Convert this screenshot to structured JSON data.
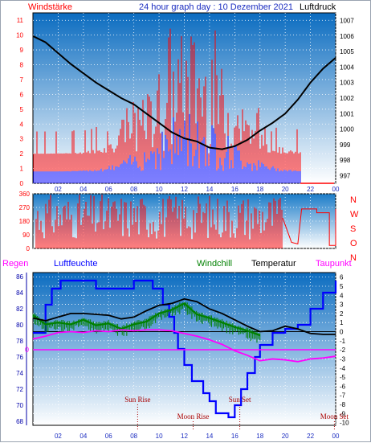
{
  "header": {
    "left_label": "Windstärke",
    "title": "24 hour graph day : 10 Dezember 2021",
    "right_label": "Luftdruck"
  },
  "colors": {
    "wind": "#ff0000",
    "gust_blue": "#0000ff",
    "pressure": "#000000",
    "humidity": "#0000ff",
    "windchill": "#008000",
    "temperature": "#000000",
    "dewpoint": "#ff00ff",
    "rain": "#ff00ff",
    "bg_top": "#0a6ec0",
    "bg_bottom": "#ffffff"
  },
  "x_ticks": [
    "02",
    "04",
    "06",
    "08",
    "10",
    "12",
    "14",
    "16",
    "18",
    "20",
    "22",
    "00"
  ],
  "panel1": {
    "y_left_ticks": [
      "0",
      "1",
      "2",
      "3",
      "4",
      "5",
      "6",
      "7",
      "8",
      "9",
      "10",
      "11"
    ],
    "y_right_ticks": [
      "997",
      "998",
      "999",
      "1000",
      "1001",
      "1002",
      "1003",
      "1004",
      "1005",
      "1006",
      "1007"
    ],
    "pressure_points": [
      [
        0,
        1006.0
      ],
      [
        1,
        1005.6
      ],
      [
        2,
        1004.9
      ],
      [
        3,
        1004.2
      ],
      [
        4,
        1003.6
      ],
      [
        5,
        1003.0
      ],
      [
        6,
        1002.5
      ],
      [
        7,
        1002.0
      ],
      [
        8,
        1001.6
      ],
      [
        9,
        1001.0
      ],
      [
        10,
        1000.4
      ],
      [
        11,
        999.8
      ],
      [
        12,
        999.4
      ],
      [
        13,
        999.2
      ],
      [
        14,
        998.8
      ],
      [
        15,
        998.7
      ],
      [
        16,
        998.9
      ],
      [
        17,
        999.3
      ],
      [
        18,
        999.9
      ],
      [
        19,
        1000.4
      ],
      [
        20,
        1001.0
      ],
      [
        21,
        1001.9
      ],
      [
        22,
        1003.0
      ],
      [
        23,
        1003.9
      ],
      [
        24,
        1004.6
      ]
    ]
  },
  "panel2": {
    "y_ticks": [
      "0",
      "90",
      "180",
      "270",
      "360"
    ],
    "compass": [
      "N",
      "W",
      "S",
      "O",
      "N"
    ]
  },
  "panel3": {
    "legend": {
      "rain": "Regen",
      "humidity": "Luftfeuchte",
      "windchill": "Windchill",
      "temperature": "Temperatur",
      "dewpoint": "Taupunkt"
    },
    "y_left_ticks": [
      "68",
      "70",
      "72",
      "74",
      "76",
      "78",
      "80",
      "82",
      "84",
      "86"
    ],
    "y_right_ticks": [
      "-10",
      "-9",
      "-8",
      "-7",
      "-6",
      "-5",
      "-4",
      "-3",
      "-2",
      "-1",
      "0",
      "1",
      "2",
      "3",
      "4",
      "5",
      "6"
    ],
    "rain_zero_label": "0",
    "humidity_points": [
      [
        0,
        79.0
      ],
      [
        1,
        82.5
      ],
      [
        1.5,
        84.5
      ],
      [
        2.2,
        85.5
      ],
      [
        4,
        85.5
      ],
      [
        5,
        84.5
      ],
      [
        6,
        84.5
      ],
      [
        8,
        85.5
      ],
      [
        9.5,
        84.5
      ],
      [
        10.3,
        82.5
      ],
      [
        10.8,
        81.0
      ],
      [
        11.2,
        79.0
      ],
      [
        11.5,
        77.0
      ],
      [
        12,
        75.0
      ],
      [
        12.6,
        73.0
      ],
      [
        13.5,
        71.5
      ],
      [
        14,
        70.5
      ],
      [
        14.5,
        69.0
      ],
      [
        15.5,
        68.5
      ],
      [
        16,
        70.0
      ],
      [
        16.5,
        72.0
      ],
      [
        17,
        74.0
      ],
      [
        17.6,
        76.0
      ],
      [
        18,
        77.5
      ],
      [
        19,
        79.0
      ],
      [
        20,
        79.5
      ],
      [
        21,
        80.0
      ],
      [
        22,
        82.0
      ],
      [
        23,
        84.0
      ],
      [
        24,
        85.5
      ]
    ],
    "temperature_points": [
      [
        0,
        1.5
      ],
      [
        1,
        1.2
      ],
      [
        2,
        1.6
      ],
      [
        3,
        2.0
      ],
      [
        4,
        2.0
      ],
      [
        5,
        1.9
      ],
      [
        6,
        1.8
      ],
      [
        7,
        1.4
      ],
      [
        8,
        1.6
      ],
      [
        9,
        2.3
      ],
      [
        10,
        2.9
      ],
      [
        11,
        3.1
      ],
      [
        12,
        3.6
      ],
      [
        13,
        3.3
      ],
      [
        14,
        2.5
      ],
      [
        15,
        2.0
      ],
      [
        16,
        1.3
      ],
      [
        17,
        0.6
      ],
      [
        18,
        0.0
      ],
      [
        19,
        0.1
      ],
      [
        20,
        0.6
      ],
      [
        21,
        0.3
      ],
      [
        22,
        -0.2
      ],
      [
        23,
        -0.3
      ],
      [
        24,
        -0.3
      ]
    ],
    "windchill_points": [
      [
        0,
        1.8
      ],
      [
        1,
        0.8
      ],
      [
        2,
        1.0
      ],
      [
        3,
        0.8
      ],
      [
        4,
        1.3
      ],
      [
        5,
        0.7
      ],
      [
        6,
        0.9
      ],
      [
        7,
        0.3
      ],
      [
        8,
        0.8
      ],
      [
        9,
        1.1
      ],
      [
        10,
        2.0
      ],
      [
        11,
        2.4
      ],
      [
        12,
        3.1
      ],
      [
        13,
        1.9
      ],
      [
        14,
        1.5
      ],
      [
        15,
        1.0
      ],
      [
        16,
        0.5
      ],
      [
        17,
        0.1
      ],
      [
        18,
        -0.4
      ]
    ],
    "dewpoint_points": [
      [
        0,
        -0.8
      ],
      [
        1,
        -0.5
      ],
      [
        2,
        -0.1
      ],
      [
        3,
        0.0
      ],
      [
        4,
        -0.1
      ],
      [
        5,
        0.1
      ],
      [
        6,
        0.0
      ],
      [
        7,
        0.2
      ],
      [
        8,
        0.1
      ],
      [
        9,
        0.2
      ],
      [
        10,
        0.2
      ],
      [
        11,
        0.1
      ],
      [
        12,
        -0.2
      ],
      [
        13,
        -0.5
      ],
      [
        14,
        -0.9
      ],
      [
        15,
        -1.4
      ],
      [
        16,
        -2.1
      ],
      [
        17,
        -2.6
      ],
      [
        18,
        -3.2
      ],
      [
        19,
        -3.0
      ],
      [
        20,
        -3.1
      ],
      [
        21,
        -3.3
      ],
      [
        22,
        -3.0
      ],
      [
        23,
        -2.9
      ],
      [
        24,
        -2.7
      ]
    ],
    "annotations": [
      {
        "label": "Sun Rise",
        "hour": 8.3,
        "row": "upper"
      },
      {
        "label": "Moon Rise",
        "hour": 12.7,
        "row": "lower"
      },
      {
        "label": "Sun Set",
        "hour": 16.4,
        "row": "upper"
      },
      {
        "label": "Moon Set",
        "hour": 23.9,
        "row": "lower"
      }
    ]
  },
  "chart_data": [
    {
      "type": "line",
      "title": "24 hour graph day : 10 Dezember 2021",
      "ylabel": "Windstärke",
      "y2label": "Luftdruck",
      "ylim": [
        0,
        11
      ],
      "y2lim": [
        997,
        1007
      ],
      "series": [
        {
          "name": "Luftdruck",
          "x": [
            0,
            1,
            2,
            3,
            4,
            5,
            6,
            7,
            8,
            9,
            10,
            11,
            12,
            13,
            14,
            15,
            16,
            17,
            18,
            19,
            20,
            21,
            22,
            23,
            24
          ],
          "values": [
            1006.0,
            1005.6,
            1004.9,
            1004.2,
            1003.6,
            1003.0,
            1002.5,
            1002.0,
            1001.6,
            1001.0,
            1000.4,
            999.8,
            999.4,
            999.2,
            998.8,
            998.7,
            998.9,
            999.3,
            999.9,
            1000.4,
            1001.0,
            1001.9,
            1003.0,
            1003.9,
            1004.6
          ]
        }
      ]
    },
    {
      "type": "line",
      "ylim": [
        0,
        360
      ],
      "yticks": [
        0,
        90,
        180,
        270,
        360
      ]
    },
    {
      "type": "line",
      "ylim": [
        68,
        86
      ],
      "y2lim": [
        -10,
        6
      ],
      "series": [
        {
          "name": "Luftfeuchte",
          "x": [
            0,
            1,
            1.5,
            2.2,
            4,
            5,
            6,
            8,
            9.5,
            10.3,
            10.8,
            11.2,
            11.5,
            12,
            12.6,
            13.5,
            14,
            14.5,
            15.5,
            16,
            16.5,
            17,
            17.6,
            18,
            19,
            20,
            21,
            22,
            23,
            24
          ],
          "values": [
            79.0,
            82.5,
            84.5,
            85.5,
            85.5,
            84.5,
            84.5,
            85.5,
            84.5,
            82.5,
            81.0,
            79.0,
            77.0,
            75.0,
            73.0,
            71.5,
            70.5,
            69.0,
            68.5,
            70.0,
            72.0,
            74.0,
            76.0,
            77.5,
            79.0,
            79.5,
            80.0,
            82.0,
            84.0,
            85.5
          ]
        },
        {
          "name": "Temperatur",
          "x": [
            0,
            1,
            2,
            3,
            4,
            5,
            6,
            7,
            8,
            9,
            10,
            11,
            12,
            13,
            14,
            15,
            16,
            17,
            18,
            19,
            20,
            21,
            22,
            23,
            24
          ],
          "values": [
            1.5,
            1.2,
            1.6,
            2.0,
            2.0,
            1.9,
            1.8,
            1.4,
            1.6,
            2.3,
            2.9,
            3.1,
            3.6,
            3.3,
            2.5,
            2.0,
            1.3,
            0.6,
            0.0,
            0.1,
            0.6,
            0.3,
            -0.2,
            -0.3,
            -0.3
          ]
        },
        {
          "name": "Windchill",
          "x": [
            0,
            1,
            2,
            3,
            4,
            5,
            6,
            7,
            8,
            9,
            10,
            11,
            12,
            13,
            14,
            15,
            16,
            17,
            18
          ],
          "values": [
            1.8,
            0.8,
            1.0,
            0.8,
            1.3,
            0.7,
            0.9,
            0.3,
            0.8,
            1.1,
            2.0,
            2.4,
            3.1,
            1.9,
            1.5,
            1.0,
            0.5,
            0.1,
            -0.4
          ]
        },
        {
          "name": "Taupunkt",
          "x": [
            0,
            1,
            2,
            3,
            4,
            5,
            6,
            7,
            8,
            9,
            10,
            11,
            12,
            13,
            14,
            15,
            16,
            17,
            18,
            19,
            20,
            21,
            22,
            23,
            24
          ],
          "values": [
            -0.8,
            -0.5,
            -0.1,
            0.0,
            -0.1,
            0.1,
            0.0,
            0.2,
            0.1,
            0.2,
            0.2,
            0.1,
            -0.2,
            -0.5,
            -0.9,
            -1.4,
            -2.1,
            -2.6,
            -3.2,
            -3.0,
            -3.1,
            -3.3,
            -3.0,
            -2.9,
            -2.7
          ]
        }
      ]
    }
  ]
}
